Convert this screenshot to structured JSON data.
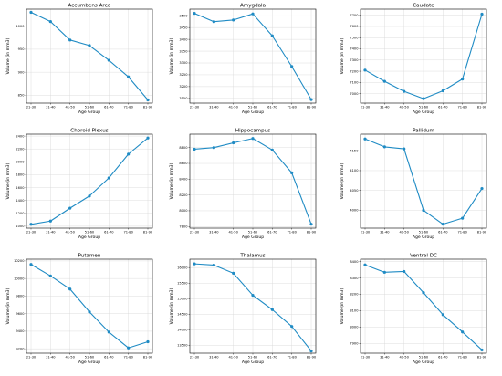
{
  "figure": {
    "line_color": "#1f8bc4"
  },
  "chart_data": [
    {
      "type": "line",
      "title": "Accumbens Area",
      "xlabel": "Age Group",
      "ylabel": "Volume (in mm3)",
      "categories": [
        "21-30",
        "31-40",
        "41-50",
        "51-60",
        "61-70",
        "71-80",
        "81-90"
      ],
      "series": [
        {
          "values": [
            1030,
            1010,
            970,
            958,
            926,
            890,
            840
          ]
        }
      ],
      "yticks": [
        850,
        900,
        950,
        1000
      ],
      "ylim": [
        833,
        1037
      ],
      "grid": true
    },
    {
      "type": "line",
      "title": "Amygdala",
      "xlabel": "Age Group",
      "ylabel": "Volume (in mm3)",
      "categories": [
        "21-30",
        "31-40",
        "41-50",
        "51-60",
        "61-70",
        "71-80",
        "81-90"
      ],
      "series": [
        {
          "values": [
            3510,
            3475,
            3482,
            3508,
            3415,
            3285,
            3145
          ]
        }
      ],
      "yticks": [
        3150,
        3200,
        3250,
        3300,
        3350,
        3400,
        3450,
        3500
      ],
      "ylim": [
        3130,
        3528
      ],
      "grid": true
    },
    {
      "type": "line",
      "title": "Caudate",
      "xlabel": "Age Group",
      "ylabel": "Volume (in mm3)",
      "categories": [
        "21-30",
        "31-40",
        "41-50",
        "51-60",
        "61-70",
        "71-80",
        "81-90"
      ],
      "series": [
        {
          "values": [
            7210,
            7110,
            7020,
            6955,
            7025,
            7130,
            7710
          ]
        }
      ],
      "yticks": [
        7000,
        7100,
        7200,
        7300,
        7400,
        7500,
        7600,
        7700
      ],
      "ylim": [
        6915,
        7755
      ],
      "grid": true
    },
    {
      "type": "line",
      "title": "Choroid Plexus",
      "xlabel": "Age Group",
      "ylabel": "Volume (in mm3)",
      "categories": [
        "21-30",
        "31-40",
        "41-50",
        "51-60",
        "61-70",
        "71-80",
        "81-90"
      ],
      "series": [
        {
          "values": [
            1030,
            1080,
            1280,
            1470,
            1750,
            2120,
            2370
          ]
        }
      ],
      "yticks": [
        1000,
        1200,
        1400,
        1600,
        1800,
        2000,
        2200,
        2400
      ],
      "ylim": [
        970,
        2430
      ],
      "grid": true
    },
    {
      "type": "line",
      "title": "Hippocampus",
      "xlabel": "Age Group",
      "ylabel": "Volume (in mm3)",
      "categories": [
        "21-30",
        "31-40",
        "41-50",
        "51-60",
        "61-70",
        "71-80",
        "81-90"
      ],
      "series": [
        {
          "values": [
            8780,
            8800,
            8860,
            8915,
            8770,
            8480,
            7830
          ]
        }
      ],
      "yticks": [
        7800,
        8000,
        8200,
        8400,
        8600,
        8800
      ],
      "ylim": [
        7780,
        8970
      ],
      "grid": true
    },
    {
      "type": "line",
      "title": "Pallidum",
      "xlabel": "Age Group",
      "ylabel": "Volume (in mm3)",
      "categories": [
        "21-30",
        "31-40",
        "41-50",
        "51-60",
        "61-70",
        "71-80",
        "81-90"
      ],
      "series": [
        {
          "values": [
            4180,
            4160,
            4155,
            4000,
            3965,
            3980,
            4055
          ]
        }
      ],
      "yticks": [
        4000,
        4050,
        4100,
        4150
      ],
      "ylim": [
        3955,
        4192
      ],
      "grid": true
    },
    {
      "type": "line",
      "title": "Putamen",
      "xlabel": "Age Group",
      "ylabel": "Volume (in mm3)",
      "categories": [
        "21-30",
        "31-40",
        "41-50",
        "51-60",
        "61-70",
        "71-80",
        "81-90"
      ],
      "series": [
        {
          "values": [
            10160,
            10030,
            9880,
            9620,
            9390,
            9210,
            9280
          ]
        }
      ],
      "yticks": [
        9200,
        9400,
        9600,
        9800,
        10000,
        10200
      ],
      "ylim": [
        9150,
        10220
      ],
      "grid": true
    },
    {
      "type": "line",
      "title": "Thalamus",
      "xlabel": "Age Group",
      "ylabel": "Volume (in mm3)",
      "categories": [
        "21-30",
        "31-40",
        "41-50",
        "51-60",
        "61-70",
        "71-80",
        "81-90"
      ],
      "series": [
        {
          "values": [
            16120,
            16080,
            15820,
            15110,
            14650,
            14110,
            13320
          ]
        }
      ],
      "yticks": [
        13500,
        14000,
        14500,
        15000,
        15500,
        16000
      ],
      "ylim": [
        13250,
        16270
      ],
      "grid": true
    },
    {
      "type": "line",
      "title": "Ventral DC",
      "xlabel": "Age Group",
      "ylabel": "Volume (in mm3)",
      "categories": [
        "21-30",
        "31-40",
        "41-50",
        "51-60",
        "61-70",
        "71-80",
        "81-90"
      ],
      "series": [
        {
          "values": [
            8380,
            8335,
            8340,
            8210,
            8075,
            7970,
            7860
          ]
        }
      ],
      "yticks": [
        7900,
        8000,
        8100,
        8200,
        8300,
        8400
      ],
      "ylim": [
        7840,
        8415
      ],
      "grid": true
    }
  ]
}
